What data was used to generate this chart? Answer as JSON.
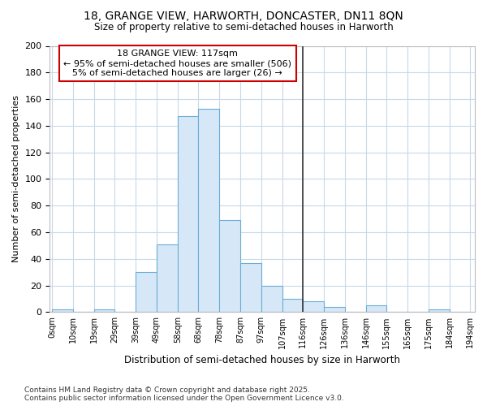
{
  "title1": "18, GRANGE VIEW, HARWORTH, DONCASTER, DN11 8QN",
  "title2": "Size of property relative to semi-detached houses in Harworth",
  "xlabel": "Distribution of semi-detached houses by size in Harworth",
  "ylabel": "Number of semi-detached properties",
  "bin_edges": [
    0,
    9.5,
    19,
    28.5,
    38,
    47.5,
    57,
    66.5,
    76,
    85.5,
    95,
    104.5,
    114,
    123.5,
    133,
    142.5,
    152,
    161.5,
    171,
    180.5,
    190
  ],
  "bar_heights": [
    2,
    0,
    2,
    0,
    30,
    51,
    147,
    153,
    69,
    37,
    20,
    10,
    8,
    4,
    0,
    5,
    0,
    0,
    2,
    0
  ],
  "bar_facecolor": "#d6e8f7",
  "bar_edgecolor": "#6aaed6",
  "vline_x": 114,
  "vline_color": "#333333",
  "ylim": [
    0,
    200
  ],
  "yticks": [
    0,
    20,
    40,
    60,
    80,
    100,
    120,
    140,
    160,
    180,
    200
  ],
  "xtick_labels": [
    "0sqm",
    "10sqm",
    "19sqm",
    "29sqm",
    "39sqm",
    "49sqm",
    "58sqm",
    "68sqm",
    "78sqm",
    "87sqm",
    "97sqm",
    "107sqm",
    "116sqm",
    "126sqm",
    "136sqm",
    "146sqm",
    "155sqm",
    "165sqm",
    "175sqm",
    "184sqm",
    "194sqm"
  ],
  "xtick_positions": [
    0,
    9.5,
    19,
    28.5,
    38,
    47.5,
    57,
    66.5,
    76,
    85.5,
    95,
    104.5,
    114,
    123.5,
    133,
    142.5,
    152,
    161.5,
    171,
    180.5,
    190
  ],
  "annotation_text": "18 GRANGE VIEW: 117sqm\n← 95% of semi-detached houses are smaller (506)\n5% of semi-detached houses are larger (26) →",
  "annotation_box_color": "#cc0000",
  "footnote": "Contains HM Land Registry data © Crown copyright and database right 2025.\nContains public sector information licensed under the Open Government Licence v3.0.",
  "grid_color": "#c8d8e8",
  "bg_color": "#ffffff"
}
